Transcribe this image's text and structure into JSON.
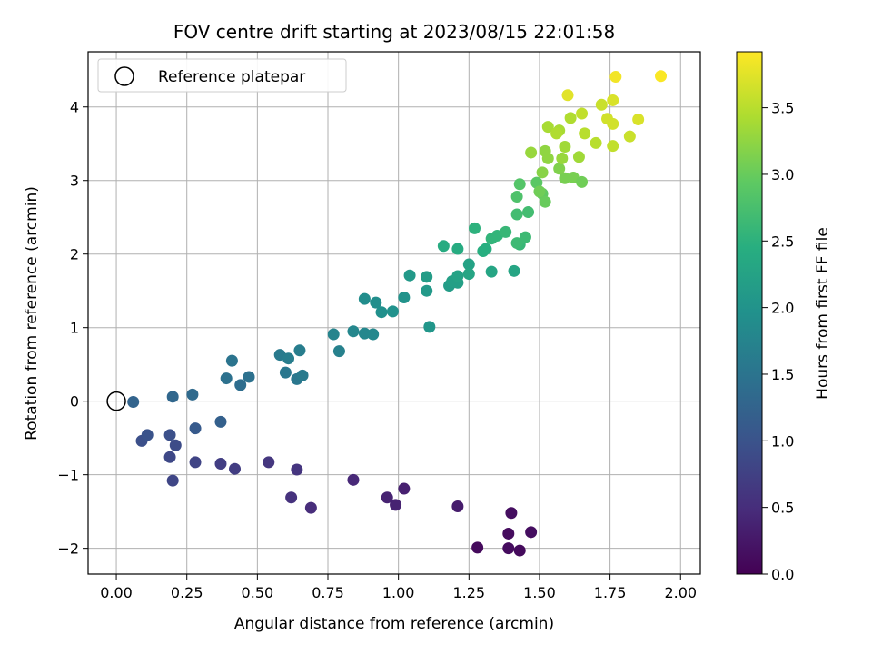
{
  "chart_data": {
    "type": "scatter",
    "title": "FOV centre drift starting at 2023/08/15 22:01:58",
    "xlabel": "Angular distance from reference (arcmin)",
    "ylabel": "Rotation from reference (arcmin)",
    "colorbar_label": "Hours from first FF file",
    "colormap": "viridis",
    "xlim": [
      -0.1,
      2.07
    ],
    "ylim": [
      -2.35,
      4.75
    ],
    "clim": [
      0.0,
      3.92
    ],
    "xticks": [
      "0.00",
      "0.25",
      "0.50",
      "0.75",
      "1.00",
      "1.25",
      "1.50",
      "1.75",
      "2.00"
    ],
    "yticks": [
      "−2",
      "−1",
      "0",
      "1",
      "2",
      "3",
      "4"
    ],
    "cticks": [
      "0.0",
      "0.5",
      "1.0",
      "1.5",
      "2.0",
      "2.5",
      "3.0",
      "3.5"
    ],
    "grid": true,
    "legend": {
      "position": "top-left",
      "entries": [
        "Reference platepar"
      ]
    },
    "reference_point": {
      "x": 0.0,
      "y": 0.0,
      "label": "Reference platepar"
    },
    "series": [
      {
        "points": [
          [
            1.28,
            -1.99,
            0.1
          ],
          [
            1.39,
            -2.0,
            0.12
          ],
          [
            1.43,
            -2.03,
            0.1
          ],
          [
            1.39,
            -1.8,
            0.12
          ],
          [
            1.47,
            -1.78,
            0.15
          ],
          [
            1.4,
            -1.52,
            0.15
          ],
          [
            1.21,
            -1.43,
            0.3
          ],
          [
            1.02,
            -1.19,
            0.35
          ],
          [
            0.99,
            -1.41,
            0.38
          ],
          [
            0.96,
            -1.31,
            0.38
          ],
          [
            0.84,
            -1.07,
            0.45
          ],
          [
            0.69,
            -1.45,
            0.5
          ],
          [
            0.62,
            -1.31,
            0.55
          ],
          [
            0.64,
            -0.93,
            0.6
          ],
          [
            0.54,
            -0.83,
            0.62
          ],
          [
            0.42,
            -0.92,
            0.7
          ],
          [
            0.37,
            -0.85,
            0.72
          ],
          [
            0.28,
            -0.83,
            0.8
          ],
          [
            0.19,
            -0.76,
            0.85
          ],
          [
            0.2,
            -1.08,
            0.82
          ],
          [
            0.21,
            -0.6,
            0.9
          ],
          [
            0.19,
            -0.46,
            0.95
          ],
          [
            0.09,
            -0.54,
            0.95
          ],
          [
            0.11,
            -0.46,
            1.0
          ],
          [
            0.28,
            -0.37,
            1.1
          ],
          [
            0.37,
            -0.28,
            1.2
          ],
          [
            0.06,
            -0.01,
            1.25
          ],
          [
            0.2,
            0.06,
            1.3
          ],
          [
            0.27,
            0.09,
            1.35
          ],
          [
            0.44,
            0.22,
            1.4
          ],
          [
            0.39,
            0.31,
            1.45
          ],
          [
            0.47,
            0.33,
            1.45
          ],
          [
            0.41,
            0.55,
            1.5
          ],
          [
            0.6,
            0.39,
            1.55
          ],
          [
            0.64,
            0.3,
            1.55
          ],
          [
            0.66,
            0.35,
            1.6
          ],
          [
            0.58,
            0.63,
            1.6
          ],
          [
            0.61,
            0.58,
            1.65
          ],
          [
            0.65,
            0.69,
            1.65
          ],
          [
            0.79,
            0.68,
            1.7
          ],
          [
            0.77,
            0.91,
            1.75
          ],
          [
            0.84,
            0.95,
            1.8
          ],
          [
            0.88,
            0.92,
            1.8
          ],
          [
            0.91,
            0.91,
            1.82
          ],
          [
            0.88,
            1.39,
            1.9
          ],
          [
            0.92,
            1.34,
            1.92
          ],
          [
            0.94,
            1.21,
            1.95
          ],
          [
            0.98,
            1.22,
            1.97
          ],
          [
            1.02,
            1.41,
            2.0
          ],
          [
            1.11,
            1.01,
            2.05
          ],
          [
            1.04,
            1.71,
            2.1
          ],
          [
            1.1,
            1.5,
            2.1
          ],
          [
            1.1,
            1.69,
            2.15
          ],
          [
            1.18,
            1.57,
            2.15
          ],
          [
            1.19,
            1.63,
            2.2
          ],
          [
            1.21,
            1.61,
            2.2
          ],
          [
            1.21,
            1.7,
            2.25
          ],
          [
            1.25,
            1.86,
            2.25
          ],
          [
            1.25,
            1.73,
            2.3
          ],
          [
            1.33,
            1.76,
            2.3
          ],
          [
            1.41,
            1.77,
            2.3
          ],
          [
            1.16,
            2.11,
            2.4
          ],
          [
            1.21,
            2.07,
            2.4
          ],
          [
            1.3,
            2.04,
            2.45
          ],
          [
            1.31,
            2.07,
            2.45
          ],
          [
            1.27,
            2.35,
            2.5
          ],
          [
            1.33,
            2.21,
            2.55
          ],
          [
            1.35,
            2.25,
            2.55
          ],
          [
            1.38,
            2.3,
            2.6
          ],
          [
            1.43,
            2.13,
            2.6
          ],
          [
            1.42,
            2.15,
            2.65
          ],
          [
            1.45,
            2.23,
            2.65
          ],
          [
            1.42,
            2.54,
            2.7
          ],
          [
            1.46,
            2.57,
            2.7
          ],
          [
            1.42,
            2.78,
            2.8
          ],
          [
            1.43,
            2.95,
            2.85
          ],
          [
            1.49,
            2.97,
            2.9
          ],
          [
            1.51,
            2.82,
            2.95
          ],
          [
            1.52,
            2.71,
            3.0
          ],
          [
            1.5,
            2.85,
            3.05
          ],
          [
            1.62,
            3.04,
            3.1
          ],
          [
            1.59,
            3.03,
            3.1
          ],
          [
            1.65,
            2.98,
            3.05
          ],
          [
            1.57,
            3.16,
            3.15
          ],
          [
            1.51,
            3.11,
            3.2
          ],
          [
            1.53,
            3.3,
            3.25
          ],
          [
            1.52,
            3.4,
            3.25
          ],
          [
            1.47,
            3.38,
            3.3
          ],
          [
            1.58,
            3.3,
            3.3
          ],
          [
            1.59,
            3.46,
            3.35
          ],
          [
            1.64,
            3.32,
            3.35
          ],
          [
            1.53,
            3.73,
            3.4
          ],
          [
            1.57,
            3.68,
            3.4
          ],
          [
            1.56,
            3.64,
            3.45
          ],
          [
            1.61,
            3.85,
            3.45
          ],
          [
            1.66,
            3.64,
            3.5
          ],
          [
            1.7,
            3.51,
            3.5
          ],
          [
            1.65,
            3.91,
            3.55
          ],
          [
            1.76,
            3.47,
            3.55
          ],
          [
            1.82,
            3.6,
            3.6
          ],
          [
            1.72,
            4.03,
            3.6
          ],
          [
            1.76,
            3.77,
            3.65
          ],
          [
            1.74,
            3.84,
            3.65
          ],
          [
            1.85,
            3.83,
            3.7
          ],
          [
            1.76,
            4.09,
            3.7
          ],
          [
            1.6,
            4.16,
            3.75
          ],
          [
            1.77,
            4.41,
            3.85
          ],
          [
            1.93,
            4.42,
            3.9
          ]
        ]
      }
    ]
  }
}
